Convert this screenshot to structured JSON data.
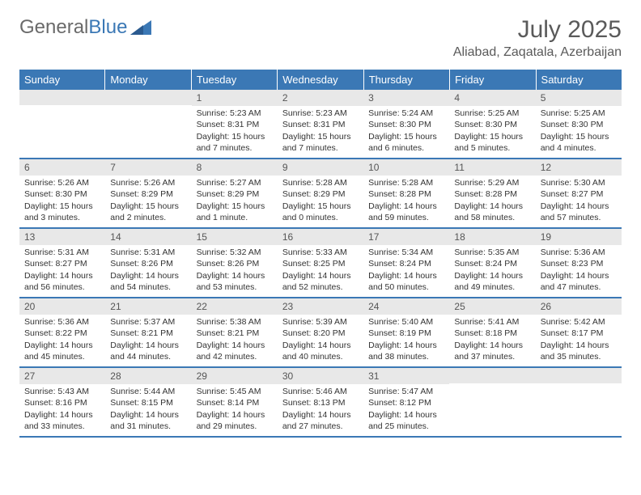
{
  "brand": {
    "part1": "General",
    "part2": "Blue"
  },
  "title": "July 2025",
  "location": "Aliabad, Zaqatala, Azerbaijan",
  "colors": {
    "header_bg": "#3b78b5",
    "header_text": "#ffffff",
    "daynum_bg": "#e8e8e8",
    "text": "#333333",
    "title_text": "#5a5a5a"
  },
  "day_headers": [
    "Sunday",
    "Monday",
    "Tuesday",
    "Wednesday",
    "Thursday",
    "Friday",
    "Saturday"
  ],
  "weeks": [
    [
      {
        "num": "",
        "sunrise": "",
        "sunset": "",
        "daylight": ""
      },
      {
        "num": "",
        "sunrise": "",
        "sunset": "",
        "daylight": ""
      },
      {
        "num": "1",
        "sunrise": "Sunrise: 5:23 AM",
        "sunset": "Sunset: 8:31 PM",
        "daylight": "Daylight: 15 hours and 7 minutes."
      },
      {
        "num": "2",
        "sunrise": "Sunrise: 5:23 AM",
        "sunset": "Sunset: 8:31 PM",
        "daylight": "Daylight: 15 hours and 7 minutes."
      },
      {
        "num": "3",
        "sunrise": "Sunrise: 5:24 AM",
        "sunset": "Sunset: 8:30 PM",
        "daylight": "Daylight: 15 hours and 6 minutes."
      },
      {
        "num": "4",
        "sunrise": "Sunrise: 5:25 AM",
        "sunset": "Sunset: 8:30 PM",
        "daylight": "Daylight: 15 hours and 5 minutes."
      },
      {
        "num": "5",
        "sunrise": "Sunrise: 5:25 AM",
        "sunset": "Sunset: 8:30 PM",
        "daylight": "Daylight: 15 hours and 4 minutes."
      }
    ],
    [
      {
        "num": "6",
        "sunrise": "Sunrise: 5:26 AM",
        "sunset": "Sunset: 8:30 PM",
        "daylight": "Daylight: 15 hours and 3 minutes."
      },
      {
        "num": "7",
        "sunrise": "Sunrise: 5:26 AM",
        "sunset": "Sunset: 8:29 PM",
        "daylight": "Daylight: 15 hours and 2 minutes."
      },
      {
        "num": "8",
        "sunrise": "Sunrise: 5:27 AM",
        "sunset": "Sunset: 8:29 PM",
        "daylight": "Daylight: 15 hours and 1 minute."
      },
      {
        "num": "9",
        "sunrise": "Sunrise: 5:28 AM",
        "sunset": "Sunset: 8:29 PM",
        "daylight": "Daylight: 15 hours and 0 minutes."
      },
      {
        "num": "10",
        "sunrise": "Sunrise: 5:28 AM",
        "sunset": "Sunset: 8:28 PM",
        "daylight": "Daylight: 14 hours and 59 minutes."
      },
      {
        "num": "11",
        "sunrise": "Sunrise: 5:29 AM",
        "sunset": "Sunset: 8:28 PM",
        "daylight": "Daylight: 14 hours and 58 minutes."
      },
      {
        "num": "12",
        "sunrise": "Sunrise: 5:30 AM",
        "sunset": "Sunset: 8:27 PM",
        "daylight": "Daylight: 14 hours and 57 minutes."
      }
    ],
    [
      {
        "num": "13",
        "sunrise": "Sunrise: 5:31 AM",
        "sunset": "Sunset: 8:27 PM",
        "daylight": "Daylight: 14 hours and 56 minutes."
      },
      {
        "num": "14",
        "sunrise": "Sunrise: 5:31 AM",
        "sunset": "Sunset: 8:26 PM",
        "daylight": "Daylight: 14 hours and 54 minutes."
      },
      {
        "num": "15",
        "sunrise": "Sunrise: 5:32 AM",
        "sunset": "Sunset: 8:26 PM",
        "daylight": "Daylight: 14 hours and 53 minutes."
      },
      {
        "num": "16",
        "sunrise": "Sunrise: 5:33 AM",
        "sunset": "Sunset: 8:25 PM",
        "daylight": "Daylight: 14 hours and 52 minutes."
      },
      {
        "num": "17",
        "sunrise": "Sunrise: 5:34 AM",
        "sunset": "Sunset: 8:24 PM",
        "daylight": "Daylight: 14 hours and 50 minutes."
      },
      {
        "num": "18",
        "sunrise": "Sunrise: 5:35 AM",
        "sunset": "Sunset: 8:24 PM",
        "daylight": "Daylight: 14 hours and 49 minutes."
      },
      {
        "num": "19",
        "sunrise": "Sunrise: 5:36 AM",
        "sunset": "Sunset: 8:23 PM",
        "daylight": "Daylight: 14 hours and 47 minutes."
      }
    ],
    [
      {
        "num": "20",
        "sunrise": "Sunrise: 5:36 AM",
        "sunset": "Sunset: 8:22 PM",
        "daylight": "Daylight: 14 hours and 45 minutes."
      },
      {
        "num": "21",
        "sunrise": "Sunrise: 5:37 AM",
        "sunset": "Sunset: 8:21 PM",
        "daylight": "Daylight: 14 hours and 44 minutes."
      },
      {
        "num": "22",
        "sunrise": "Sunrise: 5:38 AM",
        "sunset": "Sunset: 8:21 PM",
        "daylight": "Daylight: 14 hours and 42 minutes."
      },
      {
        "num": "23",
        "sunrise": "Sunrise: 5:39 AM",
        "sunset": "Sunset: 8:20 PM",
        "daylight": "Daylight: 14 hours and 40 minutes."
      },
      {
        "num": "24",
        "sunrise": "Sunrise: 5:40 AM",
        "sunset": "Sunset: 8:19 PM",
        "daylight": "Daylight: 14 hours and 38 minutes."
      },
      {
        "num": "25",
        "sunrise": "Sunrise: 5:41 AM",
        "sunset": "Sunset: 8:18 PM",
        "daylight": "Daylight: 14 hours and 37 minutes."
      },
      {
        "num": "26",
        "sunrise": "Sunrise: 5:42 AM",
        "sunset": "Sunset: 8:17 PM",
        "daylight": "Daylight: 14 hours and 35 minutes."
      }
    ],
    [
      {
        "num": "27",
        "sunrise": "Sunrise: 5:43 AM",
        "sunset": "Sunset: 8:16 PM",
        "daylight": "Daylight: 14 hours and 33 minutes."
      },
      {
        "num": "28",
        "sunrise": "Sunrise: 5:44 AM",
        "sunset": "Sunset: 8:15 PM",
        "daylight": "Daylight: 14 hours and 31 minutes."
      },
      {
        "num": "29",
        "sunrise": "Sunrise: 5:45 AM",
        "sunset": "Sunset: 8:14 PM",
        "daylight": "Daylight: 14 hours and 29 minutes."
      },
      {
        "num": "30",
        "sunrise": "Sunrise: 5:46 AM",
        "sunset": "Sunset: 8:13 PM",
        "daylight": "Daylight: 14 hours and 27 minutes."
      },
      {
        "num": "31",
        "sunrise": "Sunrise: 5:47 AM",
        "sunset": "Sunset: 8:12 PM",
        "daylight": "Daylight: 14 hours and 25 minutes."
      },
      {
        "num": "",
        "sunrise": "",
        "sunset": "",
        "daylight": ""
      },
      {
        "num": "",
        "sunrise": "",
        "sunset": "",
        "daylight": ""
      }
    ]
  ]
}
